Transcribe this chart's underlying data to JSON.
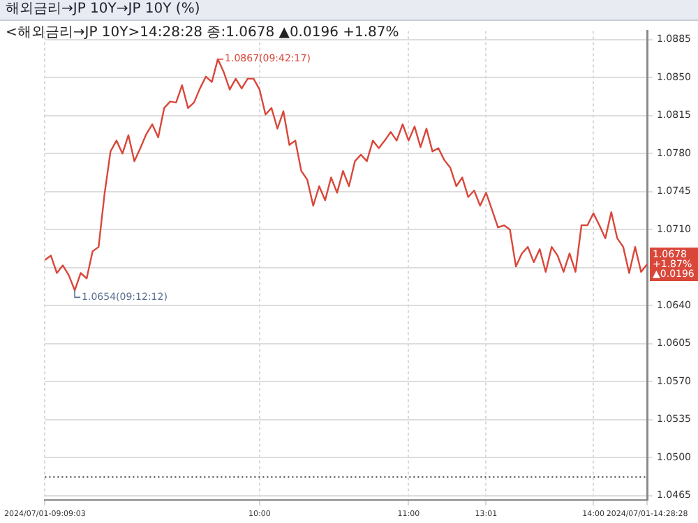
{
  "chart_data": {
    "type": "line",
    "title": "해외금리→JP   10Y→JP 10Y (%)",
    "subtitle": "<해외금리→JP 10Y>14:28:28 종:1.0678 ▲0.0196 +1.87%",
    "categories": [
      "2024/07/01-09:09:03",
      null,
      null,
      null,
      null,
      null,
      null,
      null,
      null,
      null,
      null,
      null,
      null,
      null,
      null,
      null,
      null,
      null,
      null,
      null,
      null,
      null,
      null,
      null,
      null,
      null,
      null,
      null,
      null,
      null,
      null,
      null,
      null,
      null,
      null,
      null,
      "10:00",
      null,
      null,
      null,
      null,
      null,
      null,
      null,
      null,
      null,
      null,
      null,
      null,
      null,
      null,
      null,
      null,
      null,
      null,
      null,
      null,
      null,
      null,
      null,
      null,
      "11:00",
      null,
      null,
      null,
      null,
      null,
      null,
      null,
      null,
      null,
      null,
      null,
      null,
      "13:01",
      null,
      null,
      null,
      null,
      null,
      null,
      null,
      null,
      null,
      null,
      null,
      null,
      null,
      null,
      null,
      null,
      null,
      "14:00",
      null,
      null,
      null,
      null,
      null,
      null,
      null,
      null,
      "2024/07/01-14:28:28"
    ],
    "series": [
      {
        "color": "#d9473a",
        "values": [
          1.0682,
          1.0686,
          1.067,
          1.0677,
          1.0668,
          1.0654,
          1.067,
          1.0665,
          1.069,
          1.0694,
          1.0743,
          1.0782,
          1.0792,
          1.078,
          1.0797,
          1.0773,
          1.0785,
          1.0798,
          1.0807,
          1.0795,
          1.0822,
          1.0828,
          1.0827,
          1.0843,
          1.0822,
          1.0827,
          1.084,
          1.0851,
          1.0846,
          1.0867,
          1.0855,
          1.0839,
          1.0849,
          1.084,
          1.0849,
          1.0849,
          1.0839,
          1.0816,
          1.0822,
          1.0803,
          1.0819,
          1.0788,
          1.0792,
          1.0764,
          1.0756,
          1.0732,
          1.075,
          1.0737,
          1.0758,
          1.0744,
          1.0764,
          1.075,
          1.0773,
          1.0779,
          1.0773,
          1.0792,
          1.0785,
          1.0792,
          1.08,
          1.0792,
          1.0807,
          1.0792,
          1.0805,
          1.0786,
          1.0803,
          1.0782,
          1.0785,
          1.0774,
          1.0767,
          1.075,
          1.0758,
          1.074,
          1.0746,
          1.0732,
          1.0744,
          1.0728,
          1.0712,
          1.0714,
          1.071,
          1.0676,
          1.0688,
          1.0694,
          1.068,
          1.0692,
          1.0671,
          1.0694,
          1.0686,
          1.0671,
          1.0688,
          1.0671,
          1.0714,
          1.0714,
          1.0725,
          1.0714,
          1.0702,
          1.0726,
          1.0702,
          1.0694,
          1.067,
          1.0694,
          1.0671,
          1.0678
        ]
      }
    ],
    "ylim": [
      1.0461,
      1.0893
    ],
    "yticks": [
      1.0465,
      {
        "value": 1.05,
        "label": "1.0500"
      },
      1.0535,
      {
        "value": 1.057,
        "label": "1.0570"
      },
      1.0605,
      {
        "value": 1.064,
        "label": "1.0640"
      },
      {
        "value": 1.0675,
        "label": null
      },
      {
        "value": 1.071,
        "label": "1.0710"
      },
      1.0745,
      {
        "value": 1.078,
        "label": "1.0780"
      },
      1.0815,
      {
        "value": 1.085,
        "label": "1.0850"
      },
      1.0885
    ],
    "ref_lines": [
      {
        "axis": "y",
        "value": 1.0482,
        "color": "#555555",
        "line_style": "dotted"
      }
    ],
    "annotations": [
      "1.0867(09:42:17)",
      "1.0654(09:12:12)",
      "1.0678\n+1.87%\n▲0.0196"
    ],
    "grid": true,
    "legend": false,
    "marker": "none",
    "line_style": "solid"
  }
}
